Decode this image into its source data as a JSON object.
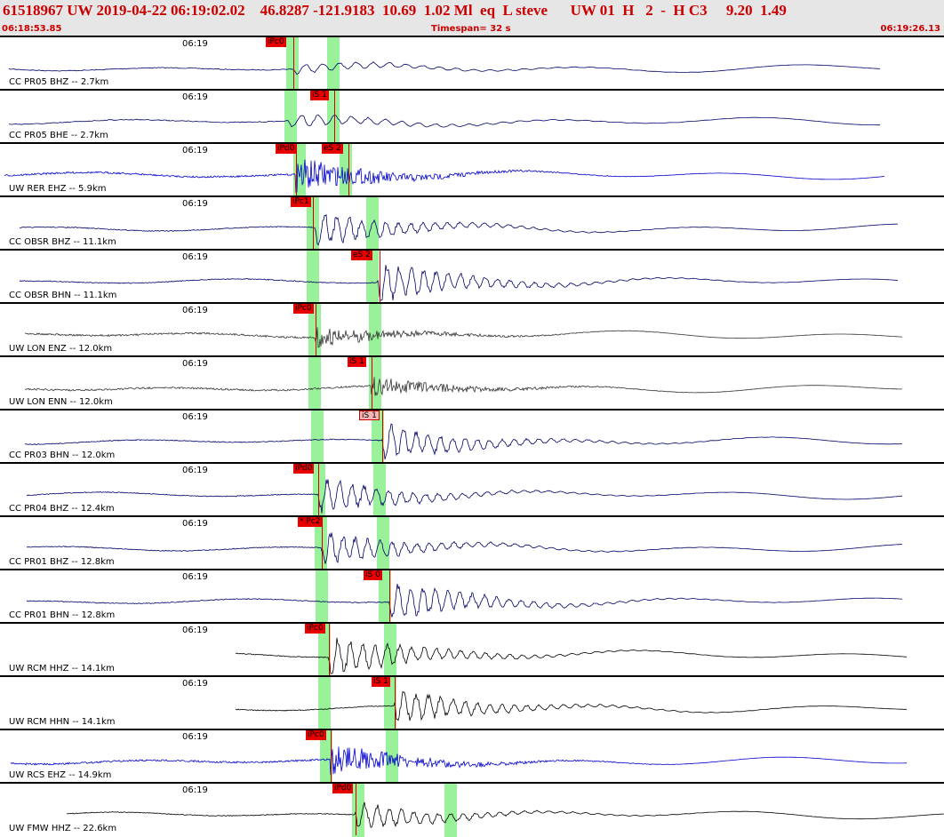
{
  "header": {
    "event_line": "61518967 UW 2019-04-22 06:19:02.02    46.8287 -121.9183  10.69  1.02 Ml  eq  L steve      UW 01  H   2  -  H C3     9.20  1.49",
    "start_time": "06:18:53.85",
    "timespan": "Timespan=  32 s",
    "end_time": "06:19:26.13"
  },
  "panels": [
    {
      "label": "CC PR05 BHZ -- 2.7km",
      "time": "06:19",
      "color": "#000066",
      "style": "lp",
      "amp": 6,
      "onset": 330,
      "xs": 10,
      "xe": 990,
      "picks": [
        {
          "text": "iPc0",
          "x": 299,
          "line": 330,
          "kind": "red"
        }
      ],
      "bands": [
        322,
        368
      ]
    },
    {
      "label": "CC PR05 BHE -- 2.7km",
      "time": "06:19",
      "color": "#000066",
      "style": "lp",
      "amp": 7,
      "onset": 325,
      "xs": 10,
      "xe": 990,
      "picks": [
        {
          "text": "iS 1",
          "x": 349,
          "line": 376,
          "kind": "red"
        }
      ],
      "bands": [
        320,
        368
      ]
    },
    {
      "label": "UW RER EHZ -- 5.9km",
      "time": "06:19",
      "color": "#0000cc",
      "style": "hf",
      "amp": 20,
      "onset": 333,
      "xs": 5,
      "xe": 995,
      "picks": [
        {
          "text": "iPd0",
          "x": 310,
          "line": 333,
          "kind": "red"
        },
        {
          "text": "eS 2",
          "x": 362,
          "line": 392,
          "kind": "red"
        }
      ],
      "bands": [
        330,
        382
      ]
    },
    {
      "label": "CC OBSR BHZ -- 11.1km",
      "time": "06:19",
      "color": "#000066",
      "style": "mid",
      "amp": 18,
      "onset": 355,
      "xs": 22,
      "xe": 1010,
      "picks": [
        {
          "text": "iPc1",
          "x": 327,
          "line": 352,
          "kind": "red"
        }
      ],
      "bands": [
        345,
        412
      ]
    },
    {
      "label": "CC OBSR BHN -- 11.1km",
      "time": "06:19",
      "color": "#000066",
      "style": "mid",
      "amp": 20,
      "onset": 425,
      "xs": 22,
      "xe": 1010,
      "picks": [
        {
          "text": "eS 2",
          "x": 395,
          "line": 427,
          "kind": "red"
        }
      ],
      "bands": [
        345,
        412
      ]
    },
    {
      "label": "UW LON ENZ -- 12.0km",
      "time": "06:19",
      "color": "#333333",
      "style": "hf",
      "amp": 12,
      "onset": 355,
      "xs": 28,
      "xe": 1015,
      "picks": [
        {
          "text": "iPc0",
          "x": 330,
          "line": 355,
          "kind": "red"
        }
      ],
      "bands": [
        347,
        415
      ]
    },
    {
      "label": "UW LON ENN -- 12.0km",
      "time": "06:19",
      "color": "#333333",
      "style": "hf",
      "amp": 12,
      "onset": 418,
      "xs": 28,
      "xe": 1015,
      "picks": [
        {
          "text": "iS 1",
          "x": 391,
          "line": 418,
          "kind": "red"
        }
      ],
      "bands": [
        347,
        415
      ]
    },
    {
      "label": "CC PR03 BHN -- 12.0km",
      "time": "06:19",
      "color": "#000066",
      "style": "mid",
      "amp": 18,
      "onset": 430,
      "xs": 28,
      "xe": 1015,
      "picks": [
        {
          "text": "iS 1",
          "x": 404,
          "line": 430,
          "kind": "pink"
        }
      ],
      "bands": [
        350,
        418
      ]
    },
    {
      "label": "CC PR04 BHZ -- 12.4km",
      "time": "06:19",
      "color": "#000066",
      "style": "mid",
      "amp": 18,
      "onset": 358,
      "xs": 30,
      "xe": 1015,
      "picks": [
        {
          "text": "iPd0",
          "x": 330,
          "line": 358,
          "kind": "red"
        }
      ],
      "bands": [
        352,
        420
      ]
    },
    {
      "label": "CC PR01 BHZ -- 12.8km",
      "time": "06:19",
      "color": "#000066",
      "style": "mid",
      "amp": 18,
      "onset": 362,
      "xs": 30,
      "xe": 1015,
      "picks": [
        {
          "text": "* Pc2",
          "x": 335,
          "line": 362,
          "kind": "red"
        }
      ],
      "bands": [
        354,
        424
      ]
    },
    {
      "label": "CC PR01 BHN -- 12.8km",
      "time": "06:19",
      "color": "#000066",
      "style": "mid",
      "amp": 20,
      "onset": 438,
      "xs": 30,
      "xe": 1015,
      "picks": [
        {
          "text": "iS 0",
          "x": 409,
          "line": 438,
          "kind": "red"
        }
      ],
      "bands": [
        355,
        426
      ]
    },
    {
      "label": "UW RCM HHZ -- 14.1km",
      "time": "06:19",
      "color": "#000000",
      "style": "mid",
      "amp": 22,
      "onset": 370,
      "xs": 265,
      "xe": 1020,
      "picks": [
        {
          "text": "iPc0",
          "x": 343,
          "line": 370,
          "kind": "red"
        }
      ],
      "bands": [
        358,
        432
      ]
    },
    {
      "label": "UW RCM HHN -- 14.1km",
      "time": "06:19",
      "color": "#000000",
      "style": "mid",
      "amp": 18,
      "onset": 444,
      "xs": 265,
      "xe": 1020,
      "picks": [
        {
          "text": "iS 1",
          "x": 418,
          "line": 444,
          "kind": "red"
        }
      ],
      "bands": [
        358,
        432
      ]
    },
    {
      "label": "UW RCS EHZ -- 14.9km",
      "time": "06:19",
      "color": "#0000cc",
      "style": "hf",
      "amp": 18,
      "onset": 372,
      "xs": 12,
      "xe": 1020,
      "picks": [
        {
          "text": "iPc0",
          "x": 344,
          "line": 372,
          "kind": "red"
        }
      ],
      "bands": [
        360,
        434
      ]
    },
    {
      "label": "UW FMW HHZ -- 22.6km",
      "time": "06:19",
      "color": "#000000",
      "style": "mid",
      "amp": 14,
      "onset": 400,
      "xs": 75,
      "xe": 1062,
      "picks": [
        {
          "text": "iPd0",
          "x": 374,
          "line": 400,
          "kind": "red"
        }
      ],
      "bands": [
        396,
        500
      ]
    }
  ]
}
